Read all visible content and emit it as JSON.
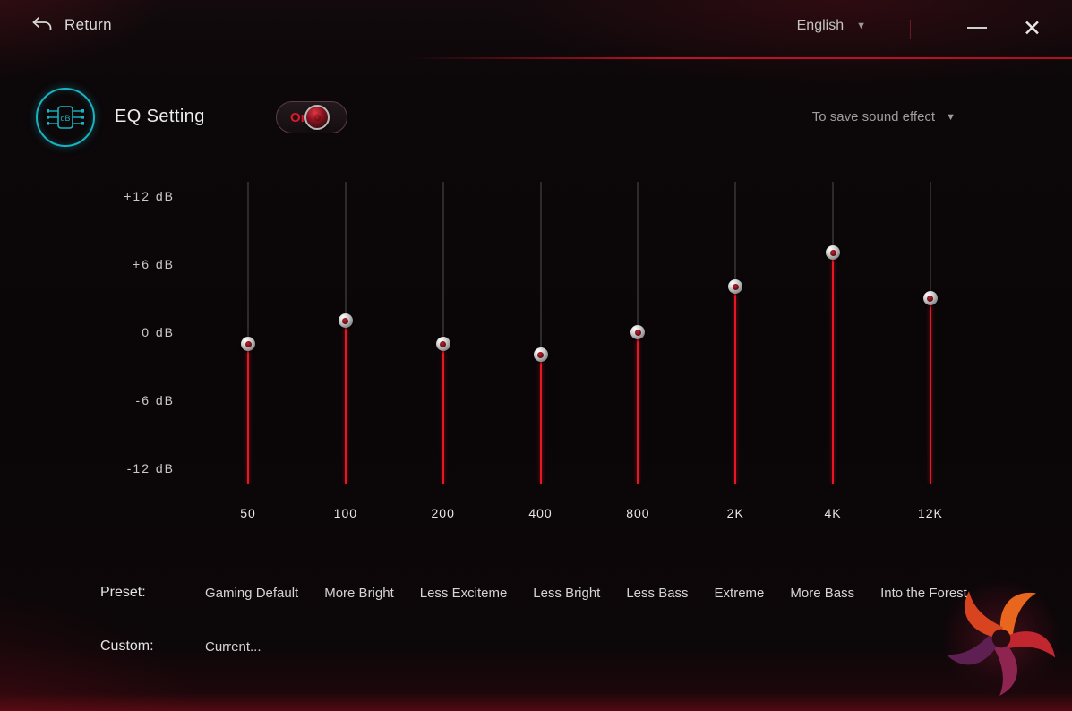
{
  "header": {
    "return_label": "Return",
    "language": "English"
  },
  "icons": {
    "return": "return-arrow",
    "dropdown_arrow": "▼",
    "minimize": "—",
    "close": "✕",
    "eq_badge": "dB"
  },
  "eq": {
    "title": "EQ Setting",
    "toggle_state": "On",
    "save_dropdown_label": "To save sound effect",
    "axis_labels": [
      "+12  dB",
      "+6  dB",
      "0  dB",
      "-6  dB",
      "-12  dB"
    ],
    "axis_max_db": 12,
    "axis_min_db": -12,
    "bands": [
      {
        "freq": "50",
        "gain_db": -1
      },
      {
        "freq": "100",
        "gain_db": 1
      },
      {
        "freq": "200",
        "gain_db": -1
      },
      {
        "freq": "400",
        "gain_db": -2
      },
      {
        "freq": "800",
        "gain_db": 0
      },
      {
        "freq": "2K",
        "gain_db": 4
      },
      {
        "freq": "4K",
        "gain_db": 7
      },
      {
        "freq": "12K",
        "gain_db": 3
      }
    ]
  },
  "presets": {
    "label": "Preset:",
    "options": [
      "Gaming Default",
      "More Bright",
      "Less Exciteme",
      "Less Bright",
      "Less Bass",
      "Extreme",
      "More Bass",
      "Into the Forest"
    ],
    "custom_label": "Custom:",
    "custom_options": [
      "Current..."
    ]
  },
  "colors": {
    "accent_red": "#e81624",
    "teal": "#17b4c2",
    "background": "#0a0608"
  }
}
